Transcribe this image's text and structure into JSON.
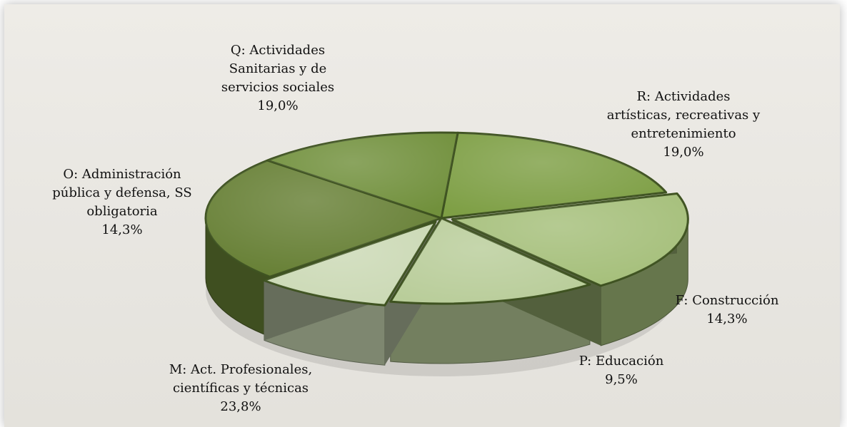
{
  "chart_data": {
    "type": "pie",
    "title": "",
    "legend": "none",
    "slices": [
      {
        "label": "Q: Actividades Sanitarias y de servicios sociales",
        "value": 19.0,
        "value_label": "19,0%",
        "color": "#7e9f45"
      },
      {
        "label": "R: Actividades artísticas, recreativas y entretenimiento",
        "value": 19.0,
        "value_label": "19,0%",
        "color": "#a5bf7a"
      },
      {
        "label": "F: Construcción",
        "value": 14.3,
        "value_label": "14,3%",
        "color": "#b9cd9a"
      },
      {
        "label": "P: Educación",
        "value": 9.5,
        "value_label": "9,5%",
        "color": "#cbd9b5"
      },
      {
        "label": "M: Act. Profesionales, científicas y técnicas",
        "value": 23.8,
        "value_label": "23,8%",
        "color": "#667f34"
      },
      {
        "label": "O: Administración pública y defensa, SS obligatoria",
        "value": 14.3,
        "value_label": "14,3%",
        "color": "#71903c"
      }
    ]
  }
}
